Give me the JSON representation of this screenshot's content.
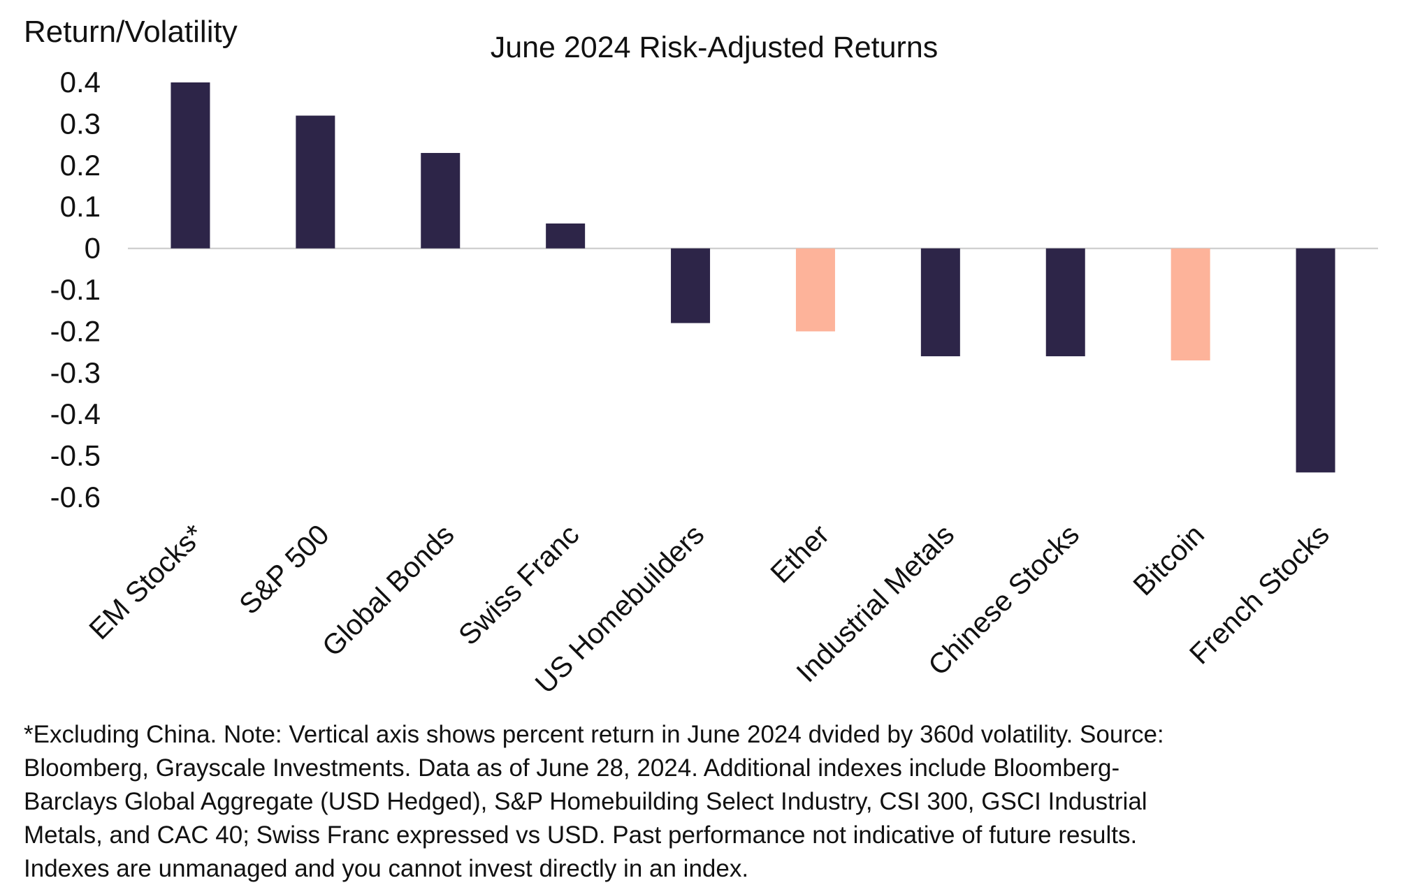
{
  "chart_data": {
    "type": "bar",
    "title": "June 2024 Risk-Adjusted Returns",
    "ylabel": "Return/Volatility",
    "xlabel": "",
    "ylim": [
      -0.6,
      0.4
    ],
    "yticks": [
      "0.4",
      "0.3",
      "0.2",
      "0.1",
      "0",
      "-0.1",
      "-0.2",
      "-0.3",
      "-0.4",
      "-0.5",
      "-0.6"
    ],
    "categories": [
      "EM Stocks*",
      "S&P 500",
      "Global Bonds",
      "Swiss Franc",
      "US Homebuilders",
      "Ether",
      "Industrial Metals",
      "Chinese Stocks",
      "Bitcoin",
      "French Stocks"
    ],
    "values": [
      0.4,
      0.32,
      0.23,
      0.06,
      -0.18,
      -0.2,
      -0.26,
      -0.26,
      -0.27,
      -0.54
    ],
    "highlight": [
      false,
      false,
      false,
      false,
      false,
      true,
      false,
      false,
      true,
      false
    ],
    "colors": {
      "default": "#2d2548",
      "highlight": "#fdb39a",
      "zero_line": "#c8c8c8"
    },
    "grid": false,
    "legend": "none"
  },
  "footnote": {
    "lines": [
      "*Excluding China. Note: Vertical axis shows percent return in June 2024 dvided by 360d volatility. Source:",
      "Bloomberg, Grayscale Investments. Data as of June 28, 2024. Additional indexes include Bloomberg-",
      "Barclays Global Aggregate (USD Hedged), S&P Homebuilding Select Industry, CSI 300, GSCI Industrial",
      "Metals, and CAC 40; Swiss Franc expressed vs USD. Past performance not indicative of future results.",
      "Indexes are unmanaged and you cannot invest directly in an index."
    ]
  }
}
